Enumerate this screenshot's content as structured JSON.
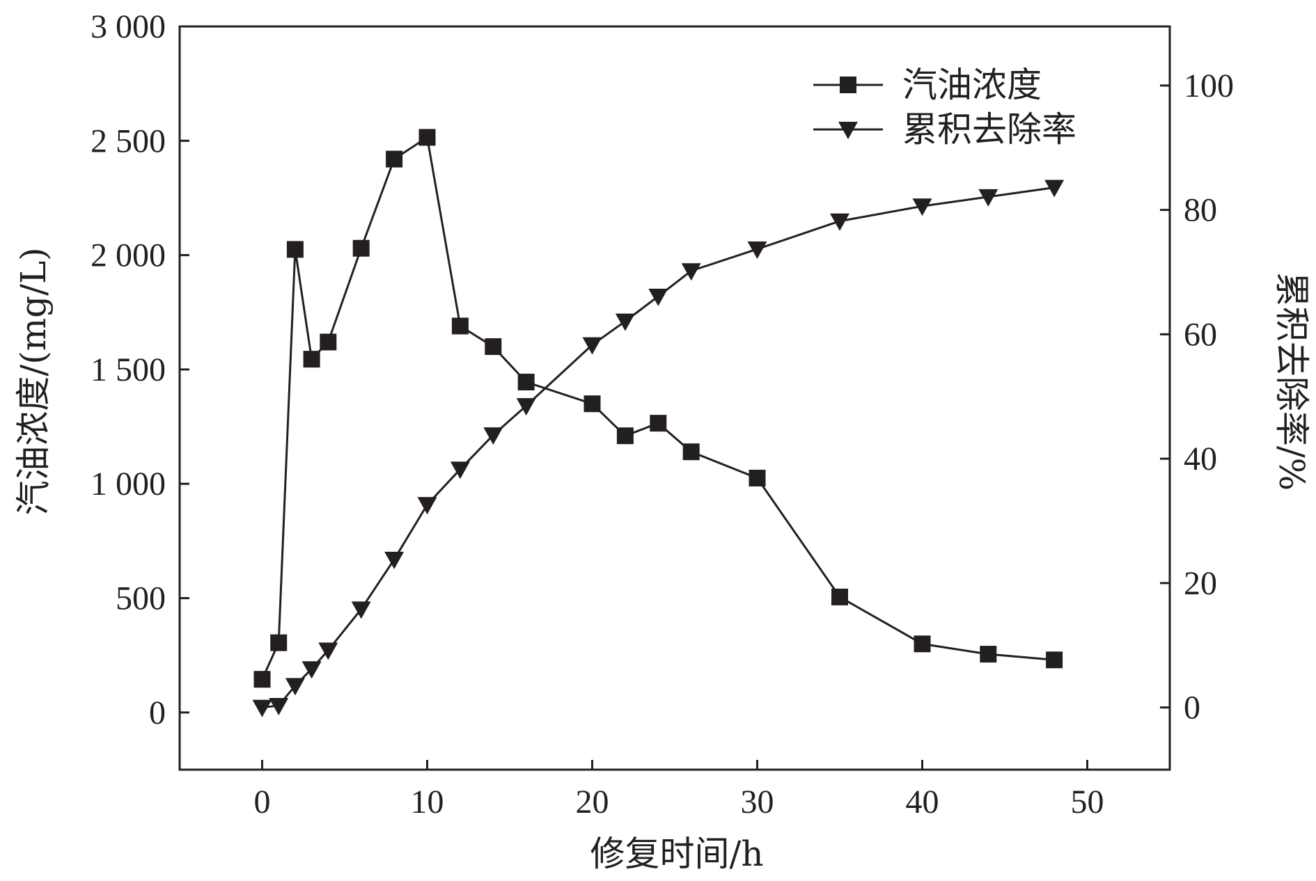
{
  "chart_data": {
    "type": "line",
    "xlabel": "修复时间/h",
    "ylabel": "汽油浓度/(mg/L)",
    "y2label": "累积去除率/%",
    "xlim": [
      -5,
      55
    ],
    "ylim": [
      -250,
      3000
    ],
    "y2lim": [
      -10,
      109.5
    ],
    "x_ticks": [
      0,
      10,
      20,
      30,
      40,
      50
    ],
    "x_tick_labels": [
      "0",
      "10",
      "20",
      "30",
      "40",
      "50"
    ],
    "y_ticks": [
      0,
      500,
      1000,
      1500,
      2000,
      2500,
      3000
    ],
    "y_tick_labels": [
      "0",
      "500",
      "1 000",
      "1 500",
      "2 000",
      "2 500",
      "3 000"
    ],
    "y2_ticks": [
      0,
      20,
      40,
      60,
      80,
      100
    ],
    "y2_tick_labels": [
      "0",
      "20",
      "40",
      "60",
      "80",
      "100"
    ],
    "legend_position": "top-right",
    "grid": false,
    "series": [
      {
        "name": "汽油浓度",
        "axis": "left",
        "marker": "square",
        "color": "#231f20",
        "x": [
          0,
          1,
          2,
          3,
          4,
          6,
          8,
          10,
          12,
          14,
          16,
          20,
          22,
          24,
          26,
          30,
          35,
          40,
          44,
          48
        ],
        "values": [
          145,
          305,
          2025,
          1545,
          1620,
          2030,
          2420,
          2515,
          1690,
          1600,
          1445,
          1350,
          1210,
          1265,
          1140,
          1025,
          505,
          300,
          255,
          230
        ]
      },
      {
        "name": "累积去除率",
        "axis": "right",
        "marker": "triangle-down",
        "color": "#231f20",
        "x": [
          0,
          1,
          2,
          3,
          4,
          6,
          8,
          10,
          12,
          14,
          16,
          20,
          22,
          24,
          26,
          30,
          35,
          40,
          44,
          48
        ],
        "values": [
          0,
          0.3,
          3.5,
          6.2,
          9.2,
          15.8,
          23.8,
          32.6,
          38.3,
          43.8,
          48.5,
          58.3,
          62.1,
          66.1,
          70.2,
          73.7,
          78.2,
          80.6,
          82.1,
          83.6
        ]
      }
    ]
  }
}
